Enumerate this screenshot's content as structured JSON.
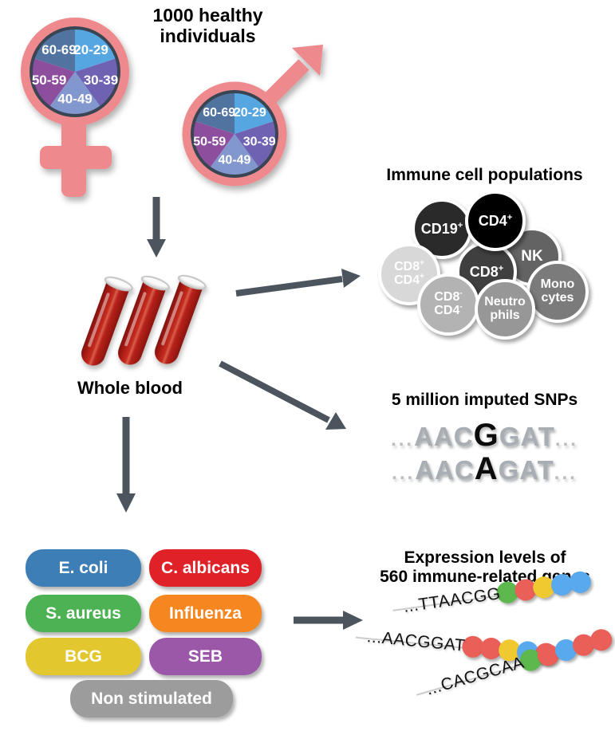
{
  "colors": {
    "symbol_pink": "#ee8a8e",
    "pie_border": "#3a4553",
    "arrow": "#4c545e",
    "blood_red": "#b22018"
  },
  "cohort": {
    "title": "1000 healthy individuals",
    "age_groups": [
      {
        "label": "20-29",
        "color": "#56a6e2"
      },
      {
        "label": "30-39",
        "color": "#6f62b2"
      },
      {
        "label": "40-49",
        "color": "#8297cd"
      },
      {
        "label": "50-59",
        "color": "#8d4e9d"
      },
      {
        "label": "60-69",
        "color": "#51739f"
      }
    ]
  },
  "whole_blood": {
    "label": "Whole blood"
  },
  "immune_cells": {
    "title": "Immune cell populations",
    "cells": [
      {
        "id": "nk",
        "lines": [
          [
            "NK",
            ""
          ]
        ],
        "color": "#636363"
      },
      {
        "id": "cd19",
        "lines": [
          [
            "CD19",
            "+"
          ]
        ],
        "color": "#2a2a2a"
      },
      {
        "id": "cd8",
        "lines": [
          [
            "CD8",
            "+"
          ]
        ],
        "color": "#3f3f3f"
      },
      {
        "id": "cd4",
        "lines": [
          [
            "CD4",
            "+"
          ]
        ],
        "color": "#000000"
      },
      {
        "id": "cd8p-cd4p",
        "lines": [
          [
            "CD8",
            "+"
          ],
          [
            "CD4",
            "+"
          ]
        ],
        "color": "#d8d8d8"
      },
      {
        "id": "monocytes",
        "lines": [
          [
            "Mono",
            ""
          ],
          [
            "cytes",
            ""
          ]
        ],
        "color": "#7b7b7b"
      },
      {
        "id": "cd8n-cd4n",
        "lines": [
          [
            "CD8",
            "-"
          ],
          [
            "CD4",
            "-"
          ]
        ],
        "color": "#b3b3b3"
      },
      {
        "id": "neutrophils",
        "lines": [
          [
            "Neutro",
            ""
          ],
          [
            "phils",
            ""
          ]
        ],
        "color": "#979797"
      }
    ]
  },
  "snps": {
    "title": "5 million imputed SNPs",
    "ellipsis": "...",
    "sequences": [
      {
        "pre": "AAC",
        "variant": "G",
        "post": "GAT"
      },
      {
        "pre": "AAC",
        "variant": "A",
        "post": "GAT"
      }
    ]
  },
  "stimulations": {
    "items": [
      {
        "label": "E. coli",
        "color": "#3e7eb6"
      },
      {
        "label": "C. albicans",
        "color": "#e02128"
      },
      {
        "label": "S. aureus",
        "color": "#4db253"
      },
      {
        "label": "Influenza",
        "color": "#f6861f"
      },
      {
        "label": "BCG",
        "color": "#e3c72f"
      },
      {
        "label": "SEB",
        "color": "#9c58a8"
      },
      {
        "label": "Non stimulated",
        "color": "#9c9c9c"
      }
    ]
  },
  "expression": {
    "title_line1": "Expression levels of",
    "title_line2": "560 immune-related genes",
    "dot_colors": {
      "green": "#5db84e",
      "red": "#ea5f58",
      "yellow": "#f0c930",
      "blue": "#59a9ee"
    },
    "strands": [
      {
        "sequence": "...TTAACGG",
        "dots": [
          "green",
          "red",
          "yellow",
          "blue",
          "blue"
        ]
      },
      {
        "sequence": "...AACGGAT",
        "dots": [
          "red",
          "red",
          "yellow",
          "blue",
          "red"
        ]
      },
      {
        "sequence": "...CACGCAA",
        "dots": [
          "green",
          "red",
          "blue",
          "red",
          "red"
        ]
      }
    ]
  }
}
